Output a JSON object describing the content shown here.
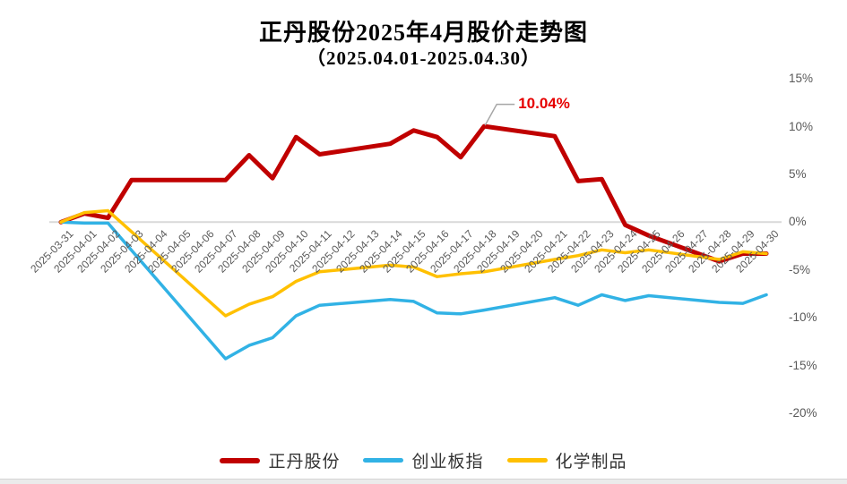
{
  "chart_data": {
    "type": "line",
    "title": "正丹股份2025年4月股价走势图",
    "subtitle": "（2025.04.01-2025.04.30）",
    "xlabel": "",
    "ylabel": "",
    "ylim": [
      -20,
      15
    ],
    "grid": "zero-line-only",
    "legend_position": "bottom",
    "axis_label_color": "#595959",
    "zero_line_color": "#d9d9d9",
    "y_ticks": [
      "15%",
      "10%",
      "5%",
      "0%",
      "-5%",
      "-10%",
      "-15%",
      "-20%"
    ],
    "x_labels": [
      "2025-03-31",
      "2025-04-01",
      "2025-04-02",
      "2025-04-03",
      "2025-04-04",
      "2025-04-05",
      "2025-04-06",
      "2025-04-07",
      "2025-04-08",
      "2025-04-09",
      "2025-04-10",
      "2025-04-11",
      "2025-04-12",
      "2025-04-13",
      "2025-04-14",
      "2025-04-15",
      "2025-04-16",
      "2025-04-17",
      "2025-04-18",
      "2025-04-19",
      "2025-04-20",
      "2025-04-21",
      "2025-04-22",
      "2025-04-23",
      "2025-04-24",
      "2025-04-25",
      "2025-04-26",
      "2025-04-27",
      "2025-04-28",
      "2025-04-29",
      "2025-04-30"
    ],
    "annotation": {
      "text": "10.04%",
      "date": "2025-04-18",
      "value": 10.04,
      "color": "#e60000"
    },
    "series": [
      {
        "id": "zhengdan-gufen",
        "name": "正丹股份",
        "color": "#c00000",
        "width": 5,
        "points": [
          [
            "2025-03-31",
            0
          ],
          [
            "2025-04-01",
            0.9
          ],
          [
            "2025-04-02",
            0.45
          ],
          [
            "2025-04-03",
            4.4
          ],
          [
            "2025-04-07",
            4.4
          ],
          [
            "2025-04-08",
            7.0
          ],
          [
            "2025-04-09",
            4.6
          ],
          [
            "2025-04-10",
            8.9
          ],
          [
            "2025-04-11",
            7.1
          ],
          [
            "2025-04-14",
            8.2
          ],
          [
            "2025-04-15",
            9.6
          ],
          [
            "2025-04-16",
            8.9
          ],
          [
            "2025-04-17",
            6.8
          ],
          [
            "2025-04-18",
            10.04
          ],
          [
            "2025-04-21",
            9.0
          ],
          [
            "2025-04-22",
            4.3
          ],
          [
            "2025-04-23",
            4.5
          ],
          [
            "2025-04-24",
            -0.3
          ],
          [
            "2025-04-25",
            -1.4
          ],
          [
            "2025-04-28",
            -4.1
          ],
          [
            "2025-04-29",
            -3.3
          ],
          [
            "2025-04-30",
            -3.3
          ]
        ]
      },
      {
        "id": "chuangyeban-zhi",
        "name": "创业板指",
        "color": "#31b2e5",
        "width": 3.5,
        "points": [
          [
            "2025-03-31",
            0
          ],
          [
            "2025-04-01",
            -0.1
          ],
          [
            "2025-04-02",
            -0.1
          ],
          [
            "2025-04-07",
            -14.3
          ],
          [
            "2025-04-08",
            -12.9
          ],
          [
            "2025-04-09",
            -12.1
          ],
          [
            "2025-04-10",
            -9.8
          ],
          [
            "2025-04-11",
            -8.7
          ],
          [
            "2025-04-14",
            -8.1
          ],
          [
            "2025-04-15",
            -8.3
          ],
          [
            "2025-04-16",
            -9.5
          ],
          [
            "2025-04-17",
            -9.6
          ],
          [
            "2025-04-18",
            -9.2
          ],
          [
            "2025-04-21",
            -7.9
          ],
          [
            "2025-04-22",
            -8.7
          ],
          [
            "2025-04-23",
            -7.6
          ],
          [
            "2025-04-24",
            -8.2
          ],
          [
            "2025-04-25",
            -7.7
          ],
          [
            "2025-04-28",
            -8.4
          ],
          [
            "2025-04-29",
            -8.5
          ],
          [
            "2025-04-30",
            -7.6
          ]
        ]
      },
      {
        "id": "huaxue-zhipin",
        "name": "化学制品",
        "color": "#ffc000",
        "width": 3.5,
        "points": [
          [
            "2025-03-31",
            0
          ],
          [
            "2025-04-01",
            1.0
          ],
          [
            "2025-04-02",
            1.2
          ],
          [
            "2025-04-07",
            -9.8
          ],
          [
            "2025-04-08",
            -8.6
          ],
          [
            "2025-04-09",
            -7.8
          ],
          [
            "2025-04-10",
            -6.2
          ],
          [
            "2025-04-11",
            -5.2
          ],
          [
            "2025-04-14",
            -4.5
          ],
          [
            "2025-04-15",
            -4.7
          ],
          [
            "2025-04-16",
            -5.7
          ],
          [
            "2025-04-17",
            -5.4
          ],
          [
            "2025-04-18",
            -5.2
          ],
          [
            "2025-04-21",
            -3.9
          ],
          [
            "2025-04-22",
            -3.5
          ],
          [
            "2025-04-23",
            -2.9
          ],
          [
            "2025-04-24",
            -3.2
          ],
          [
            "2025-04-25",
            -2.9
          ],
          [
            "2025-04-28",
            -3.9
          ],
          [
            "2025-04-29",
            -3.1
          ],
          [
            "2025-04-30",
            -3.3
          ]
        ]
      }
    ]
  }
}
